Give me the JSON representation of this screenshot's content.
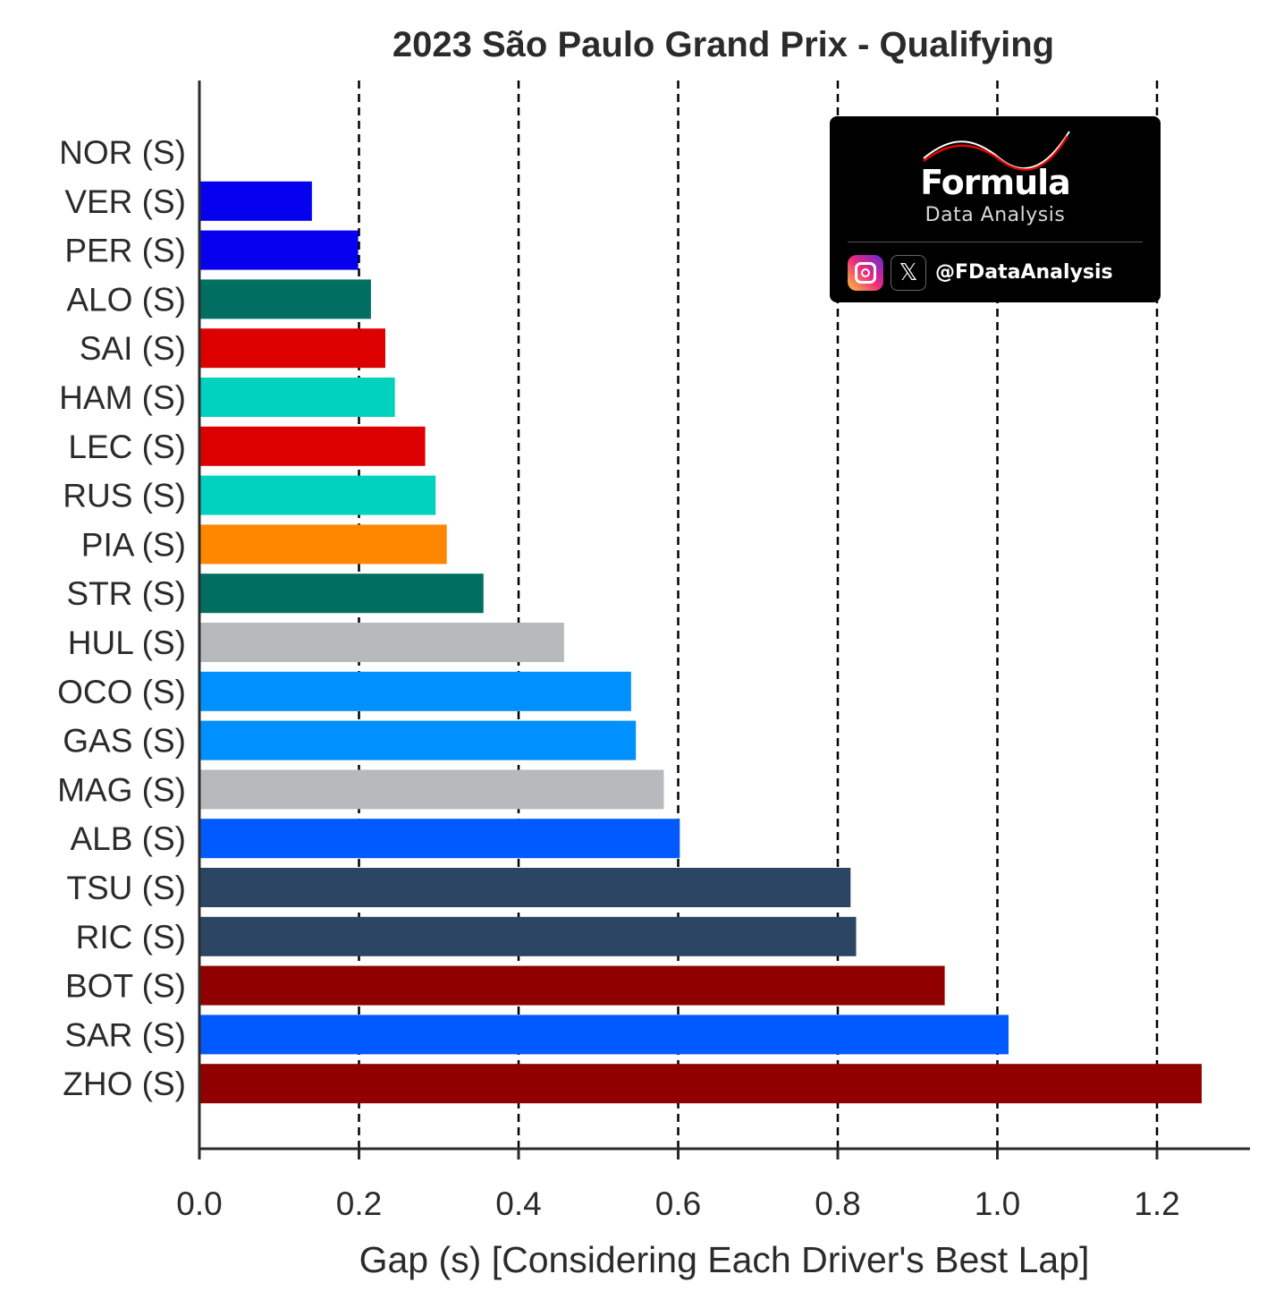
{
  "chart_data": {
    "type": "bar",
    "orientation": "horizontal",
    "title": "2023 São Paulo Grand Prix - Qualifying",
    "xlabel": "Gap (s) [Considering Each Driver's Best Lap]",
    "ylabel": "",
    "xlim": [
      0,
      1.32
    ],
    "xticks": [
      0.0,
      0.2,
      0.4,
      0.6,
      0.8,
      1.0,
      1.2
    ],
    "xtick_labels": [
      "0.0",
      "0.2",
      "0.4",
      "0.6",
      "0.8",
      "1.0",
      "1.2"
    ],
    "grid": "vertical dashed",
    "categories": [
      "NOR (S)",
      "VER (S)",
      "PER (S)",
      "ALO (S)",
      "SAI (S)",
      "HAM (S)",
      "LEC (S)",
      "RUS (S)",
      "PIA (S)",
      "STR (S)",
      "HUL (S)",
      "OCO (S)",
      "GAS (S)",
      "MAG (S)",
      "ALB (S)",
      "TSU (S)",
      "RIC (S)",
      "BOT (S)",
      "SAR (S)",
      "ZHO (S)"
    ],
    "values": [
      0.0,
      0.141,
      0.199,
      0.215,
      0.233,
      0.245,
      0.283,
      0.296,
      0.31,
      0.356,
      0.457,
      0.541,
      0.547,
      0.582,
      0.602,
      0.816,
      0.823,
      0.934,
      1.014,
      1.256
    ],
    "colors": [
      "#ff8000",
      "#0600ef",
      "#0600ef",
      "#006f62",
      "#dc0000",
      "#00d2be",
      "#dc0000",
      "#00d2be",
      "#ff8700",
      "#006f62",
      "#b6babd",
      "#0090ff",
      "#0090ff",
      "#b6babd",
      "#005aff",
      "#2b4562",
      "#2b4562",
      "#900000",
      "#005aff",
      "#900000"
    ]
  },
  "logo": {
    "name": "Formula",
    "subtitle": "Data Analysis",
    "handle": "@FDataAnalysis",
    "icons": [
      "instagram-icon",
      "x-icon"
    ]
  }
}
